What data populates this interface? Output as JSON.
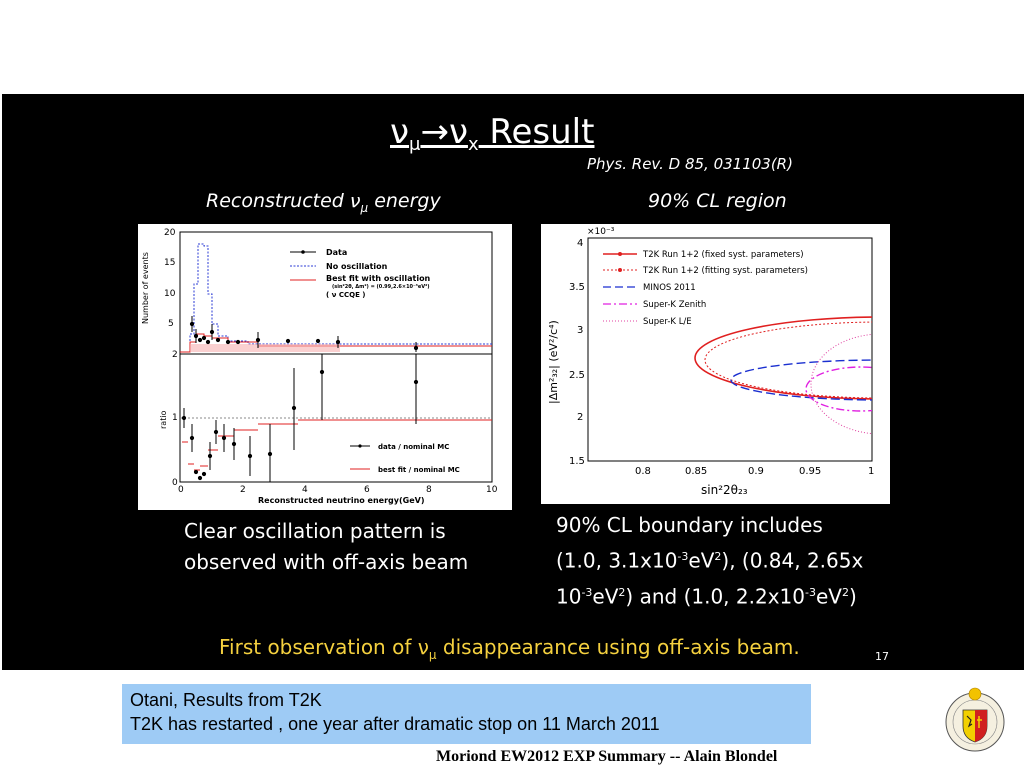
{
  "slide": {
    "title_prefix": "ν",
    "title_sub1": "μ",
    "title_arrow": "→ν",
    "title_sub2": "x",
    "title_suffix": " Result",
    "reference": "Phys. Rev. D 85, 031103(R)",
    "left_subtitle_prefix": "Reconstructed ν",
    "left_subtitle_sub": "μ",
    "left_subtitle_suffix": " energy",
    "right_subtitle": "90% CL region",
    "left_caption_line1": "Clear oscillation pattern is",
    "left_caption_line2": "observed with off-axis beam",
    "right_caption_line1": "90% CL boundary includes",
    "right_caption_line2a": "(1.0, 3.1x10",
    "right_caption_line2b": "-3",
    "right_caption_line2c": "eV",
    "right_caption_line2d": "2",
    "right_caption_line2e": "), (0.84, 2.65x",
    "right_caption_line3a": "10",
    "right_caption_line3b": "-3",
    "right_caption_line3c": "eV",
    "right_caption_line3d": "2",
    "right_caption_line3e": ") and (1.0, 2.2x10",
    "right_caption_line3f": "-3",
    "right_caption_line3g": "eV",
    "right_caption_line3h": "2",
    "right_caption_line3i": ")",
    "conclusion_prefix": "First observation of ν",
    "conclusion_sub": "μ",
    "conclusion_suffix": " disappearance using off-axis beam.",
    "page_number": "17",
    "colors": {
      "background": "#000000",
      "highlight_text": "#f4d03f",
      "note_box": "#9ecbf5"
    }
  },
  "left_plot": {
    "ylabel_top": "Number of events",
    "ylabel_bottom": "ratio",
    "xlabel": "Reconstructed neutrino energy(GeV)",
    "xticks": [
      "0",
      "2",
      "4",
      "6",
      "8",
      "10"
    ],
    "yticks_top": [
      "5",
      "10",
      "15",
      "20"
    ],
    "yticks_bottom": [
      "0",
      "1",
      "2"
    ],
    "legend_top": [
      "Data",
      "No oscillation",
      "Best fit with oscillation",
      "(sin²2θ, Δm²) = (0.99,2.6×10⁻³eV²)",
      "( ν CCQE )"
    ],
    "legend_bottom": [
      "data / nominal MC",
      "best fit / nominal MC"
    ]
  },
  "right_plot": {
    "ylabel": "|Δm²₃₂| (eV²/c⁴)",
    "xlabel": "sin²2θ₂₃",
    "ymultiplier": "×10⁻³",
    "xticks": [
      "0.8",
      "0.85",
      "0.9",
      "0.95",
      "1"
    ],
    "yticks": [
      "1.5",
      "2",
      "2.5",
      "3",
      "3.5",
      "4"
    ],
    "legend": [
      "T2K Run 1+2 (fixed syst. parameters)",
      "T2K Run 1+2 (fitting syst. parameters)",
      "MINOS 2011",
      "Super-K Zenith",
      "Super-K L/E"
    ]
  },
  "note": {
    "line1": "Otani, Results from T2K",
    "line2": "T2K has restarted , one year after dramatic stop on 11 March 2011"
  },
  "footer": "Moriond EW2012 EXP Summary -- Alain Blondel",
  "logo_icon": "university-seal-icon"
}
